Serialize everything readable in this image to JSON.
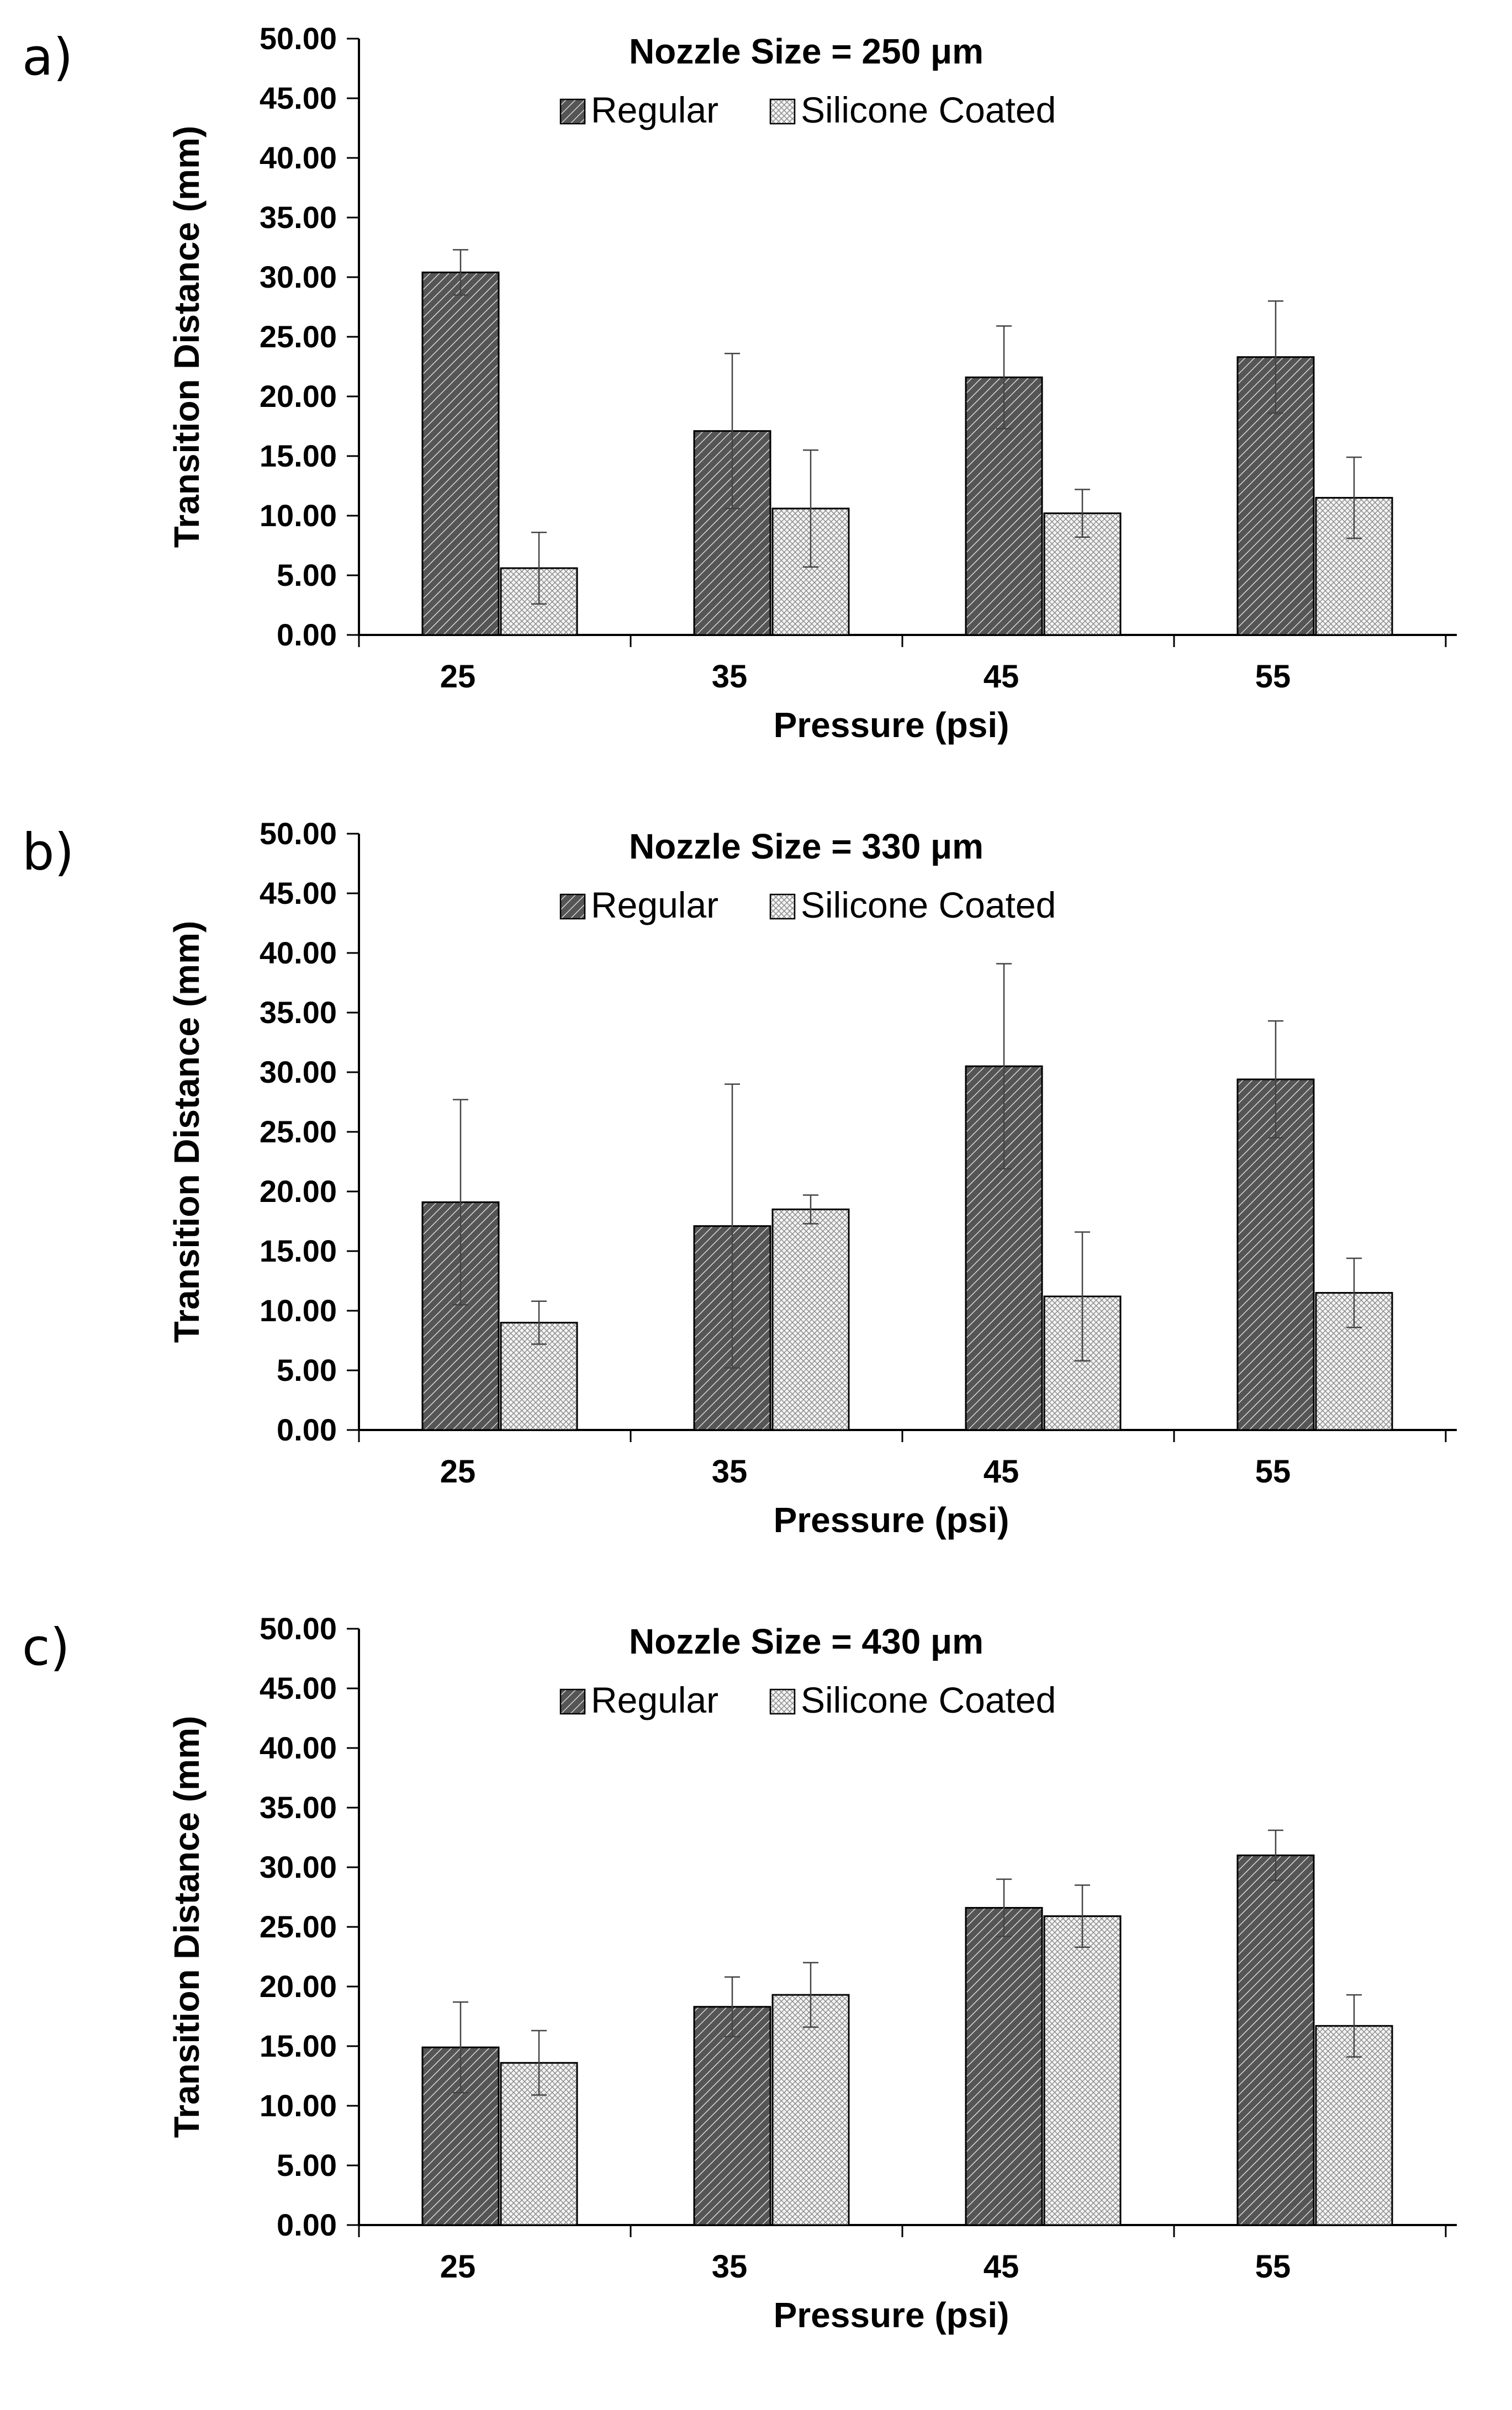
{
  "panels": [
    {
      "label": "a)",
      "chart_data": {
        "type": "bar",
        "title": "Nozzle Size = 250 μm",
        "xlabel": "Pressure (psi)",
        "ylabel": "Transition Distance (mm)",
        "categories": [
          "25",
          "35",
          "45",
          "55"
        ],
        "ylim": [
          0,
          50
        ],
        "yticks": [
          "0.00",
          "5.00",
          "10.00",
          "15.00",
          "20.00",
          "25.00",
          "30.00",
          "35.00",
          "40.00",
          "45.00",
          "50.00"
        ],
        "grid": false,
        "legend": "top",
        "series": [
          {
            "name": "Regular",
            "values": [
              30.4,
              17.1,
              21.6,
              23.3
            ],
            "errors": [
              1.9,
              6.5,
              4.3,
              4.7
            ]
          },
          {
            "name": "Silicone Coated",
            "values": [
              5.6,
              10.6,
              10.2,
              11.5
            ],
            "errors": [
              3.0,
              4.9,
              2.0,
              3.4
            ]
          }
        ]
      }
    },
    {
      "label": "b)",
      "chart_data": {
        "type": "bar",
        "title": "Nozzle Size = 330 μm",
        "xlabel": "Pressure (psi)",
        "ylabel": "Transition Distance (mm)",
        "categories": [
          "25",
          "35",
          "45",
          "55"
        ],
        "ylim": [
          0,
          50
        ],
        "yticks": [
          "0.00",
          "5.00",
          "10.00",
          "15.00",
          "20.00",
          "25.00",
          "30.00",
          "35.00",
          "40.00",
          "45.00",
          "50.00"
        ],
        "grid": false,
        "legend": "top",
        "series": [
          {
            "name": "Regular",
            "values": [
              19.1,
              17.1,
              30.5,
              29.4
            ],
            "errors": [
              8.6,
              11.9,
              8.6,
              4.9
            ]
          },
          {
            "name": "Silicone Coated",
            "values": [
              9.0,
              18.5,
              11.2,
              11.5
            ],
            "errors": [
              1.8,
              1.2,
              5.4,
              2.9
            ]
          }
        ]
      }
    },
    {
      "label": "c)",
      "chart_data": {
        "type": "bar",
        "title": "Nozzle Size = 430 μm",
        "xlabel": "Pressure (psi)",
        "ylabel": "Transition Distance (mm)",
        "categories": [
          "25",
          "35",
          "45",
          "55"
        ],
        "ylim": [
          0,
          50
        ],
        "yticks": [
          "0.00",
          "5.00",
          "10.00",
          "15.00",
          "20.00",
          "25.00",
          "30.00",
          "35.00",
          "40.00",
          "45.00",
          "50.00"
        ],
        "grid": false,
        "legend": "top",
        "series": [
          {
            "name": "Regular",
            "values": [
              14.9,
              18.3,
              26.6,
              31.0
            ],
            "errors": [
              3.8,
              2.5,
              2.4,
              2.1
            ]
          },
          {
            "name": "Silicone Coated",
            "values": [
              13.6,
              19.3,
              25.9,
              16.7
            ],
            "errors": [
              2.7,
              2.7,
              2.6,
              2.6
            ]
          }
        ]
      }
    }
  ],
  "colors": {
    "regular_fill": "#555555",
    "regular_hatch": "#d8d8d8",
    "coated_fill": "#f4f4f4",
    "coated_hatch": "#8a8a8a",
    "axis": "#000000",
    "error_bar": "#444444"
  }
}
